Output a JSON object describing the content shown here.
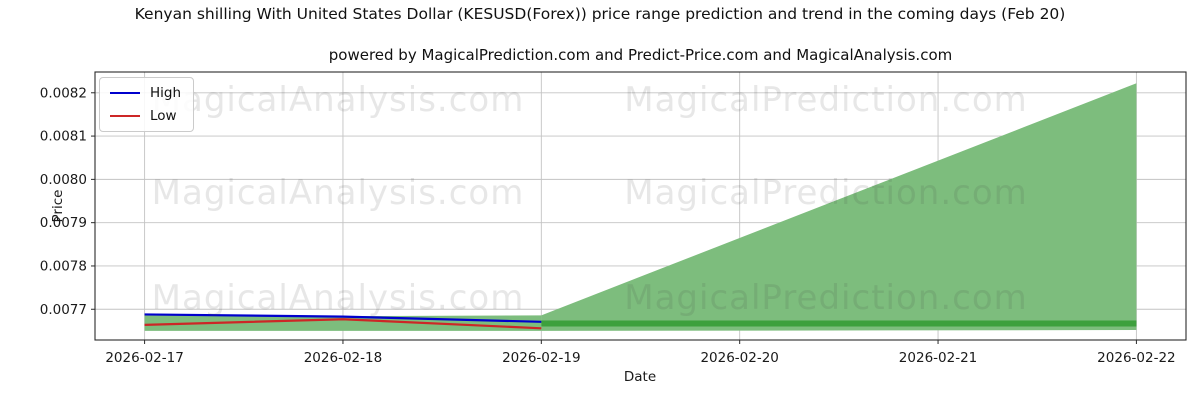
{
  "watermark": {
    "texts": [
      "MagicalAnalysis.com",
      "MagicalPrediction.com"
    ]
  },
  "chart_data": {
    "type": "line",
    "title": "Kenyan shilling With United States Dollar (KESUSD(Forex)) price range prediction and trend in the coming days (Feb 20)",
    "subtitle": "powered by MagicalPrediction.com and Predict-Price.com and MagicalAnalysis.com",
    "xlabel": "Date",
    "ylabel": "Price",
    "x_ticks": [
      "2026-02-17",
      "2026-02-18",
      "2026-02-19",
      "2026-02-20",
      "2026-02-21",
      "2026-02-22"
    ],
    "y_ticks": [
      0.0077,
      0.0078,
      0.0079,
      0.008,
      0.0081,
      0.0082
    ],
    "y_tick_labels": [
      "0.0077",
      "0.0078",
      "0.0079",
      "0.0080",
      "0.0081",
      "0.0082"
    ],
    "ylim": [
      0.007629,
      0.008248
    ],
    "grid": true,
    "grid_color": "#c3c3c3",
    "spine_color": "#2a2a2a",
    "legend": {
      "position": "upper-left",
      "items": [
        {
          "label": "High",
          "color": "#0000cd"
        },
        {
          "label": "Low",
          "color": "#cd2626"
        }
      ]
    },
    "series": [
      {
        "name": "High",
        "color": "#0000cd",
        "linewidth": 2.2,
        "x": [
          "2026-02-17",
          "2026-02-18",
          "2026-02-19"
        ],
        "values": [
          0.007688,
          0.007683,
          0.007671
        ]
      },
      {
        "name": "Low",
        "color": "#cd2626",
        "linewidth": 2.2,
        "x": [
          "2026-02-17",
          "2026-02-18",
          "2026-02-19"
        ],
        "values": [
          0.007664,
          0.007677,
          0.007656
        ]
      }
    ],
    "bands": [
      {
        "name": "historical-range",
        "fill": "#7dbd7d",
        "x": [
          "2026-02-17",
          "2026-02-18",
          "2026-02-19"
        ],
        "top": [
          0.00769,
          0.007684,
          0.007686
        ],
        "bottom": [
          0.00765,
          0.00765,
          0.00765
        ]
      },
      {
        "name": "forecast-range",
        "fill": "#7dbd7d",
        "x": [
          "2026-02-19",
          "2026-02-22"
        ],
        "top": [
          0.007686,
          0.008222
        ],
        "bottom": [
          0.00765,
          0.007652
        ]
      }
    ],
    "trend": {
      "name": "forecast-trend",
      "color": "#3da03d",
      "linewidth": 6,
      "x": [
        "2026-02-19",
        "2026-02-22"
      ],
      "values": [
        0.007667,
        0.007667
      ]
    }
  }
}
